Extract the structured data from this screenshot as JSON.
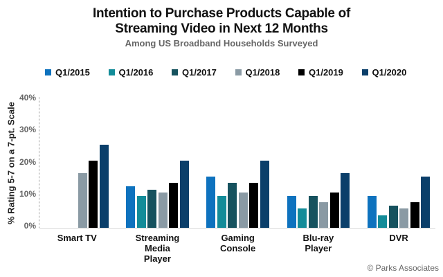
{
  "chart_data": {
    "type": "bar",
    "title": "Intention to Purchase Products Capable of Streaming Video in Next 12 Months",
    "title_lines": [
      "Intention to Purchase Products Capable of",
      "Streaming Video in Next 12 Months"
    ],
    "subtitle": "Among US Broadband Households Surveyed",
    "xlabel": "",
    "ylabel": "% Rating 5-7 on a 7-pt. Scale",
    "ylim": [
      0,
      40
    ],
    "yticks": [
      0,
      10,
      20,
      30,
      40
    ],
    "ytick_labels": [
      "0%",
      "10%",
      "20%",
      "30%",
      "40%"
    ],
    "grid": false,
    "legend_position": "top",
    "categories": [
      "Smart TV",
      "Streaming Media Player",
      "Gaming Console",
      "Blu-ray Player",
      "DVR"
    ],
    "category_labels": [
      "Smart TV",
      "Streaming\nMedia\nPlayer",
      "Gaming\nConsole",
      "Blu-ray\nPlayer",
      "DVR"
    ],
    "series": [
      {
        "name": "Q1/2015",
        "color": "#0E72BE",
        "values": [
          null,
          13,
          16,
          10,
          10
        ]
      },
      {
        "name": "Q1/2016",
        "color": "#138C99",
        "values": [
          null,
          10,
          10,
          6,
          4
        ]
      },
      {
        "name": "Q1/2017",
        "color": "#16525E",
        "values": [
          null,
          12,
          14,
          10,
          7
        ]
      },
      {
        "name": "Q1/2018",
        "color": "#8A9AA4",
        "values": [
          17,
          11,
          11,
          8,
          6
        ]
      },
      {
        "name": "Q1/2019",
        "color": "#000000",
        "values": [
          21,
          14,
          14,
          11,
          8
        ]
      },
      {
        "name": "Q1/2020",
        "color": "#0B3F6A",
        "values": [
          26,
          21,
          21,
          17,
          16
        ]
      }
    ],
    "source": "© Parks Associates"
  }
}
